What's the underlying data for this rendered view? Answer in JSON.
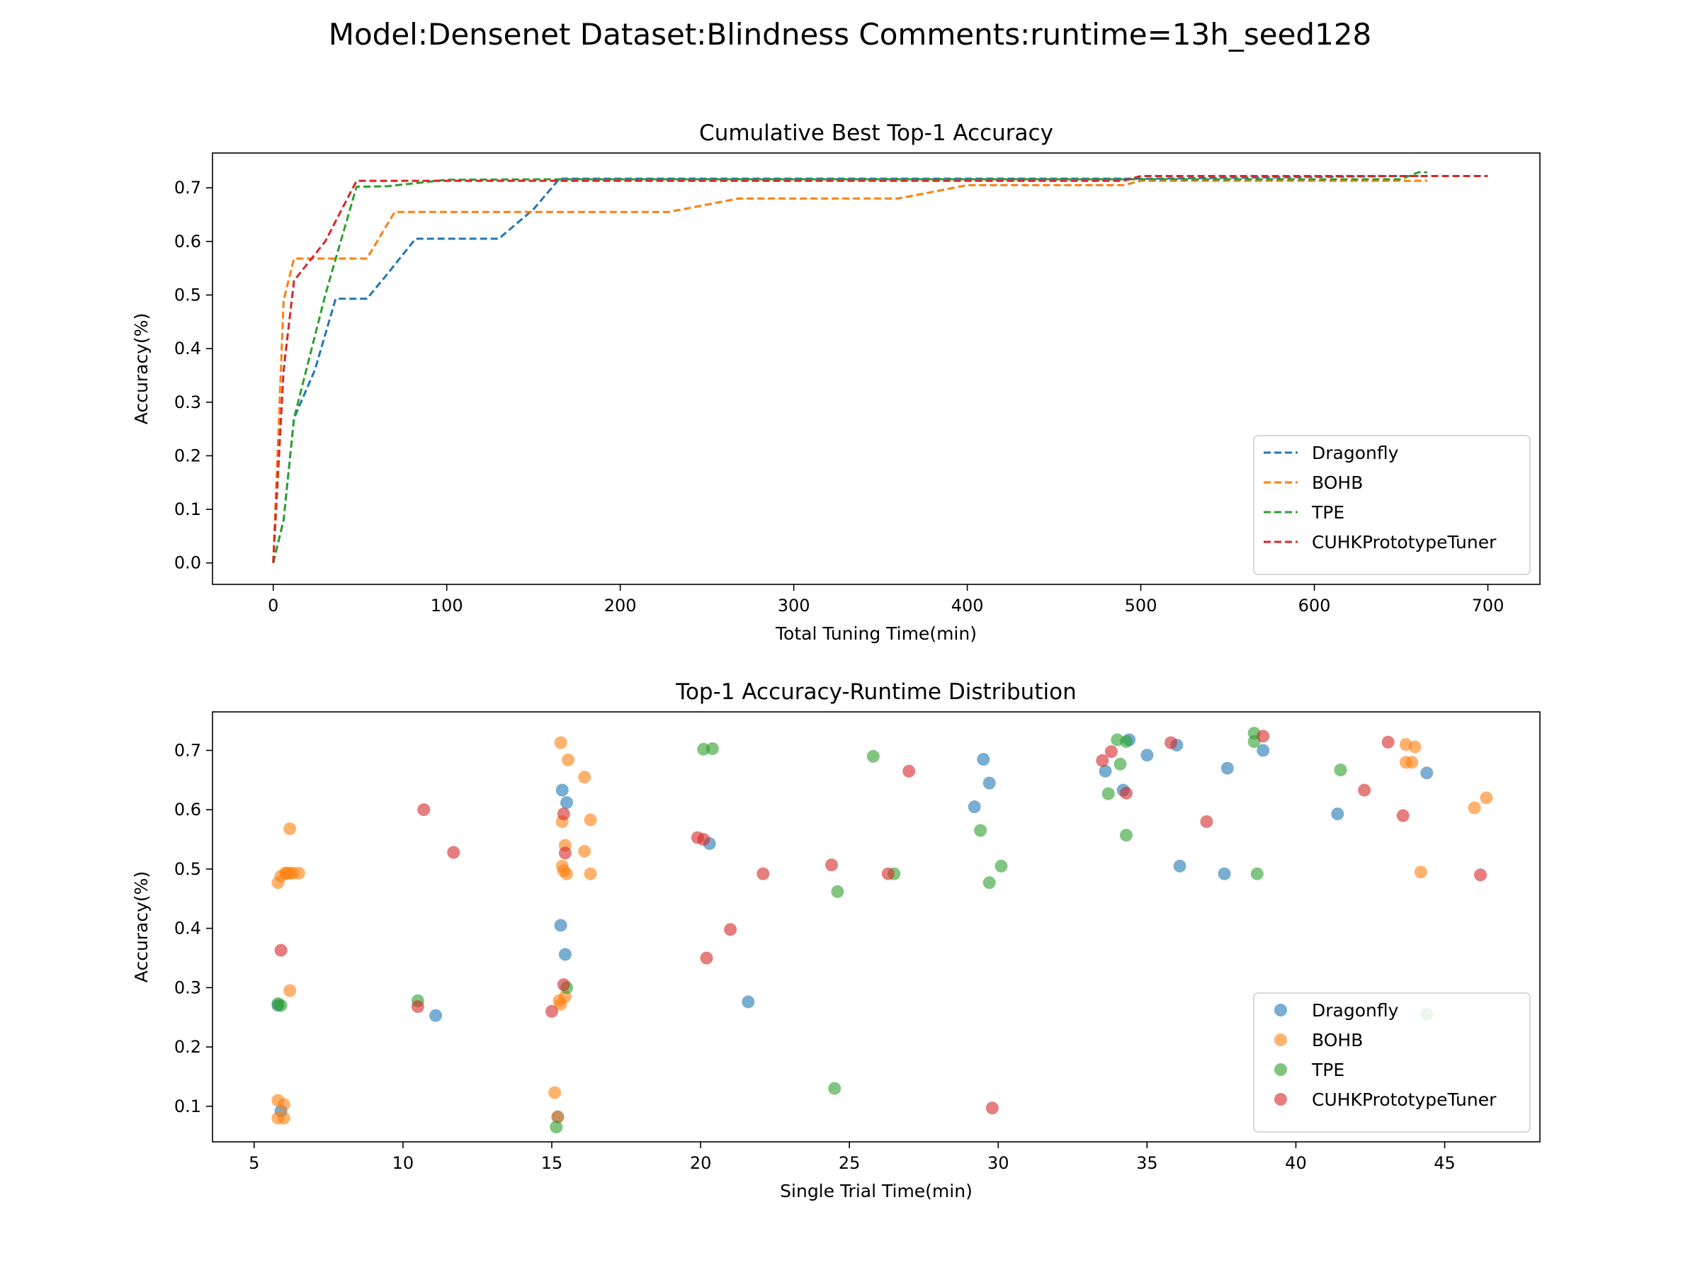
{
  "figure": {
    "suptitle": "Model:Densenet Dataset:Blindness Comments:runtime=13h_seed128"
  },
  "colors": {
    "Dragonfly": "#1f77b4",
    "BOHB": "#ff7f0e",
    "TPE": "#2ca02c",
    "CUHKPrototypeTuner": "#d62728"
  },
  "chart_data": [
    {
      "type": "line",
      "title": "Cumulative Best Top-1 Accuracy",
      "xlabel": "Total Tuning Time(min)",
      "ylabel": "Accuracy(%)",
      "xlim": [
        -35,
        730
      ],
      "ylim": [
        -0.04,
        0.765
      ],
      "xticks": [
        0,
        100,
        200,
        300,
        400,
        500,
        600,
        700
      ],
      "yticks": [
        0.0,
        0.1,
        0.2,
        0.3,
        0.4,
        0.5,
        0.6,
        0.7
      ],
      "line_style": "dashed",
      "legend": "lower-right",
      "grid": false,
      "series": [
        {
          "name": "Dragonfly",
          "x": [
            0,
            6,
            12,
            24,
            36,
            54,
            66,
            82,
            100,
            130,
            150,
            165,
            250,
            350,
            500,
            650,
            665
          ],
          "y": [
            0.0,
            0.08,
            0.27,
            0.36,
            0.493,
            0.493,
            0.54,
            0.605,
            0.605,
            0.605,
            0.66,
            0.717,
            0.717,
            0.717,
            0.717,
            0.722,
            0.722
          ]
        },
        {
          "name": "BOHB",
          "x": [
            0,
            6,
            12,
            30,
            54,
            70,
            150,
            228,
            268,
            300,
            360,
            400,
            490,
            500,
            665
          ],
          "y": [
            0.0,
            0.49,
            0.568,
            0.568,
            0.568,
            0.655,
            0.655,
            0.655,
            0.68,
            0.68,
            0.68,
            0.705,
            0.705,
            0.713,
            0.713
          ]
        },
        {
          "name": "TPE",
          "x": [
            0,
            6,
            12,
            30,
            48,
            66,
            100,
            160,
            400,
            500,
            650,
            660,
            665
          ],
          "y": [
            0.0,
            0.08,
            0.27,
            0.5,
            0.702,
            0.703,
            0.715,
            0.716,
            0.716,
            0.716,
            0.716,
            0.729,
            0.729
          ]
        },
        {
          "name": "CUHKPrototypeTuner",
          "x": [
            0,
            6,
            12,
            30,
            48,
            100,
            300,
            490,
            500,
            600,
            700
          ],
          "y": [
            0.0,
            0.36,
            0.527,
            0.6,
            0.713,
            0.713,
            0.713,
            0.713,
            0.722,
            0.722,
            0.722
          ]
        }
      ]
    },
    {
      "type": "scatter",
      "title": "Top-1 Accuracy-Runtime Distribution",
      "xlabel": "Single Trial Time(min)",
      "ylabel": "Accuracy(%)",
      "xlim": [
        3.6,
        48.2
      ],
      "ylim": [
        0.04,
        0.765
      ],
      "xticks": [
        5,
        10,
        15,
        20,
        25,
        30,
        35,
        40,
        45
      ],
      "yticks": [
        0.1,
        0.2,
        0.3,
        0.4,
        0.5,
        0.6,
        0.7
      ],
      "legend": "lower-right",
      "grid": false,
      "series": [
        {
          "name": "Dragonfly",
          "points": [
            [
              5.8,
              0.27
            ],
            [
              5.9,
              0.092
            ],
            [
              11.1,
              0.253
            ],
            [
              15.2,
              0.082
            ],
            [
              15.3,
              0.405
            ],
            [
              15.35,
              0.633
            ],
            [
              15.45,
              0.356
            ],
            [
              15.5,
              0.612
            ],
            [
              20.3,
              0.543
            ],
            [
              21.6,
              0.276
            ],
            [
              29.2,
              0.605
            ],
            [
              29.5,
              0.685
            ],
            [
              29.7,
              0.645
            ],
            [
              33.6,
              0.665
            ],
            [
              34.2,
              0.633
            ],
            [
              34.4,
              0.718
            ],
            [
              35.0,
              0.692
            ],
            [
              36.0,
              0.709
            ],
            [
              36.1,
              0.505
            ],
            [
              37.6,
              0.492
            ],
            [
              37.7,
              0.67
            ],
            [
              38.9,
              0.7
            ],
            [
              41.4,
              0.593
            ],
            [
              44.4,
              0.662
            ]
          ]
        },
        {
          "name": "BOHB",
          "points": [
            [
              5.8,
              0.477
            ],
            [
              5.8,
              0.11
            ],
            [
              5.8,
              0.08
            ],
            [
              5.9,
              0.488
            ],
            [
              6.0,
              0.08
            ],
            [
              6.0,
              0.103
            ],
            [
              6.05,
              0.493
            ],
            [
              6.1,
              0.493
            ],
            [
              6.2,
              0.493
            ],
            [
              6.2,
              0.295
            ],
            [
              6.2,
              0.568
            ],
            [
              6.3,
              0.493
            ],
            [
              6.5,
              0.493
            ],
            [
              15.1,
              0.123
            ],
            [
              15.2,
              0.082
            ],
            [
              15.25,
              0.278
            ],
            [
              15.3,
              0.713
            ],
            [
              15.3,
              0.272
            ],
            [
              15.35,
              0.505
            ],
            [
              15.35,
              0.58
            ],
            [
              15.4,
              0.497
            ],
            [
              15.45,
              0.54
            ],
            [
              15.45,
              0.285
            ],
            [
              15.5,
              0.492
            ],
            [
              15.55,
              0.684
            ],
            [
              16.1,
              0.655
            ],
            [
              16.1,
              0.53
            ],
            [
              16.3,
              0.583
            ],
            [
              16.3,
              0.492
            ],
            [
              43.7,
              0.71
            ],
            [
              43.7,
              0.68
            ],
            [
              43.9,
              0.68
            ],
            [
              44.0,
              0.706
            ],
            [
              44.2,
              0.495
            ],
            [
              46.0,
              0.603
            ],
            [
              46.4,
              0.62
            ]
          ]
        },
        {
          "name": "TPE",
          "points": [
            [
              5.8,
              0.273
            ],
            [
              5.9,
              0.27
            ],
            [
              10.5,
              0.278
            ],
            [
              15.15,
              0.065
            ],
            [
              15.5,
              0.3
            ],
            [
              20.1,
              0.702
            ],
            [
              20.4,
              0.703
            ],
            [
              24.5,
              0.13
            ],
            [
              24.6,
              0.462
            ],
            [
              25.8,
              0.69
            ],
            [
              26.5,
              0.492
            ],
            [
              29.4,
              0.565
            ],
            [
              29.7,
              0.477
            ],
            [
              30.1,
              0.505
            ],
            [
              33.7,
              0.627
            ],
            [
              34.0,
              0.718
            ],
            [
              34.1,
              0.677
            ],
            [
              34.3,
              0.715
            ],
            [
              34.3,
              0.557
            ],
            [
              38.6,
              0.729
            ],
            [
              38.6,
              0.715
            ],
            [
              38.7,
              0.492
            ],
            [
              41.5,
              0.667
            ],
            [
              44.4,
              0.255
            ]
          ]
        },
        {
          "name": "CUHKPrototypeTuner",
          "points": [
            [
              5.9,
              0.363
            ],
            [
              10.5,
              0.268
            ],
            [
              10.7,
              0.6
            ],
            [
              11.7,
              0.528
            ],
            [
              15.0,
              0.26
            ],
            [
              15.4,
              0.305
            ],
            [
              15.4,
              0.593
            ],
            [
              15.45,
              0.527
            ],
            [
              19.9,
              0.553
            ],
            [
              20.1,
              0.55
            ],
            [
              20.2,
              0.35
            ],
            [
              21.0,
              0.398
            ],
            [
              22.1,
              0.492
            ],
            [
              24.4,
              0.507
            ],
            [
              26.3,
              0.492
            ],
            [
              27.0,
              0.665
            ],
            [
              29.8,
              0.097
            ],
            [
              33.5,
              0.683
            ],
            [
              33.8,
              0.698
            ],
            [
              34.3,
              0.628
            ],
            [
              35.8,
              0.713
            ],
            [
              37.0,
              0.58
            ],
            [
              38.9,
              0.724
            ],
            [
              42.3,
              0.633
            ],
            [
              43.1,
              0.714
            ],
            [
              43.6,
              0.59
            ],
            [
              46.2,
              0.49
            ]
          ]
        }
      ]
    }
  ]
}
